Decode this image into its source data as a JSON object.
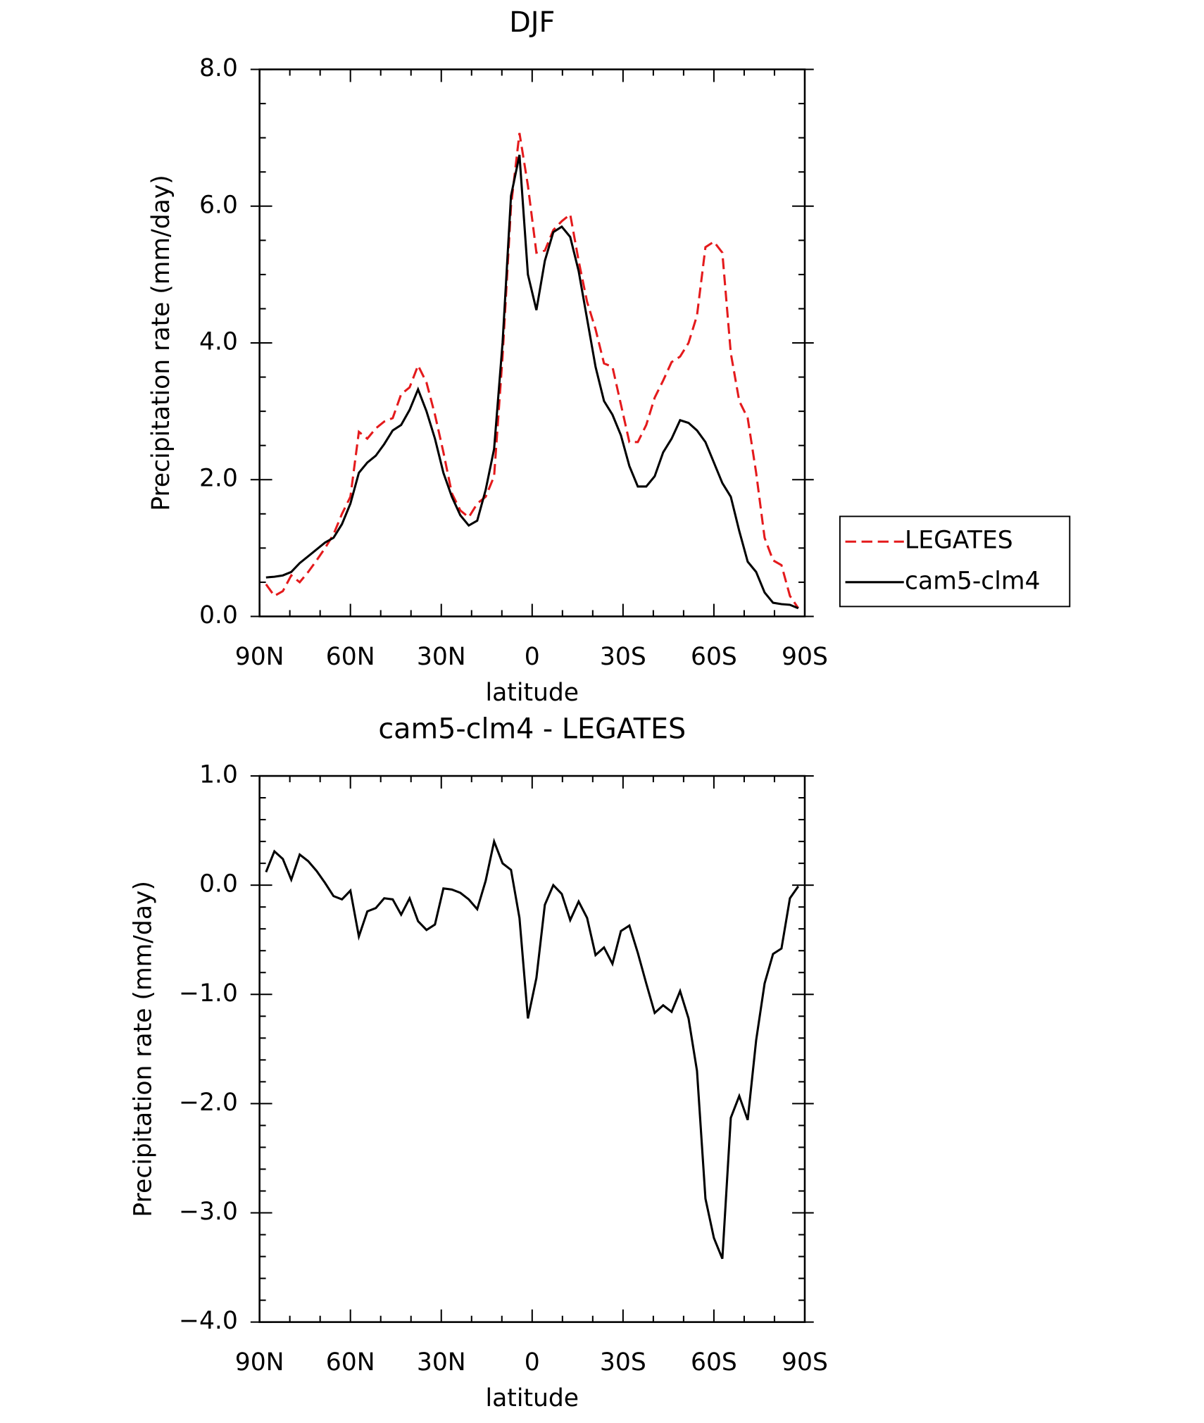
{
  "chart_data": [
    {
      "type": "line",
      "title": "DJF",
      "xlabel": "latitude",
      "ylabel": "Precipitation rate (mm/day)",
      "x": [
        87.86,
        85.1,
        82.31,
        79.53,
        76.74,
        73.95,
        71.16,
        68.37,
        65.58,
        62.79,
        60.0,
        57.21,
        54.42,
        51.63,
        48.84,
        46.04,
        43.25,
        40.46,
        37.67,
        34.88,
        32.09,
        29.3,
        26.51,
        23.72,
        20.93,
        18.14,
        15.35,
        12.56,
        9.77,
        6.98,
        4.19,
        1.4,
        -1.4,
        -4.19,
        -6.98,
        -9.77,
        -12.56,
        -15.35,
        -18.14,
        -20.93,
        -23.72,
        -26.51,
        -29.3,
        -32.09,
        -34.88,
        -37.67,
        -40.46,
        -43.25,
        -46.04,
        -48.84,
        -51.63,
        -54.42,
        -57.21,
        -60.0,
        -62.79,
        -65.58,
        -68.37,
        -71.16,
        -73.95,
        -76.74,
        -79.53,
        -82.31,
        -85.1,
        -87.86
      ],
      "series": [
        {
          "name": "LEGATES",
          "color": "#e41a1c",
          "dash": "dashed",
          "values": [
            0.47,
            0.3,
            0.37,
            0.6,
            0.5,
            0.65,
            0.82,
            1.0,
            1.2,
            1.5,
            1.75,
            2.7,
            2.6,
            2.75,
            2.85,
            2.9,
            3.25,
            3.35,
            3.67,
            3.42,
            2.95,
            2.4,
            1.8,
            1.55,
            1.45,
            1.65,
            1.75,
            2.05,
            3.8,
            6.0,
            7.07,
            6.3,
            5.32,
            5.35,
            5.65,
            5.78,
            5.88,
            5.2,
            4.6,
            4.2,
            3.7,
            3.65,
            3.1,
            2.55,
            2.55,
            2.8,
            3.2,
            3.45,
            3.72,
            3.8,
            4.0,
            4.4,
            5.4,
            5.48,
            5.32,
            3.85,
            3.15,
            2.9,
            2.1,
            1.15,
            0.82,
            0.75,
            0.3,
            0.12
          ]
        },
        {
          "name": "cam5-clm4",
          "color": "#000000",
          "dash": "solid",
          "values": [
            0.57,
            0.58,
            0.6,
            0.65,
            0.78,
            0.88,
            0.98,
            1.08,
            1.15,
            1.35,
            1.65,
            2.1,
            2.25,
            2.35,
            2.52,
            2.72,
            2.8,
            3.02,
            3.32,
            3.0,
            2.6,
            2.1,
            1.75,
            1.48,
            1.33,
            1.4,
            1.85,
            2.45,
            4.0,
            6.15,
            6.75,
            5.0,
            4.48,
            5.2,
            5.62,
            5.7,
            5.55,
            5.05,
            4.35,
            3.65,
            3.15,
            2.95,
            2.65,
            2.2,
            1.9,
            1.9,
            2.05,
            2.4,
            2.6,
            2.87,
            2.83,
            2.72,
            2.55,
            2.25,
            1.95,
            1.75,
            1.25,
            0.8,
            0.65,
            0.35,
            0.2,
            0.18,
            0.17,
            0.12
          ]
        }
      ],
      "xlim": [
        90,
        -90
      ],
      "xticks": [
        {
          "value": 90,
          "label": "90N"
        },
        {
          "value": 60,
          "label": "60N"
        },
        {
          "value": 30,
          "label": "30N"
        },
        0,
        {
          "value": -30,
          "label": "30S"
        },
        {
          "value": -60,
          "label": "60S"
        },
        {
          "value": -90,
          "label": "90S"
        }
      ],
      "minor_xticks": [
        80,
        70,
        50,
        40,
        20,
        10,
        -10,
        -20,
        -40,
        -50,
        -70,
        -80
      ],
      "ylim": [
        0,
        8
      ],
      "yticks": [
        {
          "value": 0,
          "label": "0.0"
        },
        {
          "value": 2,
          "label": "2.0"
        },
        {
          "value": 4,
          "label": "4.0"
        },
        {
          "value": 6,
          "label": "6.0"
        },
        {
          "value": 8,
          "label": "8.0"
        }
      ],
      "minor_yticks": [
        0.5,
        1,
        1.5,
        2.5,
        3,
        3.5,
        4.5,
        5,
        5.5,
        6.5,
        7,
        7.5
      ],
      "legend": "outside-right"
    },
    {
      "type": "line",
      "title": "cam5-clm4 - LEGATES",
      "xlabel": "latitude",
      "ylabel": "Precipitation rate (mm/day)",
      "x": [
        87.86,
        85.1,
        82.31,
        79.53,
        76.74,
        73.95,
        71.16,
        68.37,
        65.58,
        62.79,
        60.0,
        57.21,
        54.42,
        51.63,
        48.84,
        46.04,
        43.25,
        40.46,
        37.67,
        34.88,
        32.09,
        29.3,
        26.51,
        23.72,
        20.93,
        18.14,
        15.35,
        12.56,
        9.77,
        6.98,
        4.19,
        1.4,
        -1.4,
        -4.19,
        -6.98,
        -9.77,
        -12.56,
        -15.35,
        -18.14,
        -20.93,
        -23.72,
        -26.51,
        -29.3,
        -32.09,
        -34.88,
        -37.67,
        -40.46,
        -43.25,
        -46.04,
        -48.84,
        -51.63,
        -54.42,
        -57.21,
        -60.0,
        -62.79,
        -65.58,
        -68.37,
        -71.16,
        -73.95,
        -76.74,
        -79.53,
        -82.31,
        -85.1,
        -87.86
      ],
      "series": [
        {
          "color": "#000000",
          "dash": "solid",
          "values": [
            0.12,
            0.31,
            0.24,
            0.05,
            0.28,
            0.22,
            0.13,
            0.02,
            -0.1,
            -0.13,
            -0.05,
            -0.47,
            -0.24,
            -0.21,
            -0.12,
            -0.13,
            -0.27,
            -0.12,
            -0.33,
            -0.41,
            -0.36,
            -0.03,
            -0.04,
            -0.07,
            -0.13,
            -0.22,
            0.04,
            0.4,
            0.2,
            0.14,
            -0.3,
            -1.22,
            -0.85,
            -0.18,
            0.0,
            -0.08,
            -0.32,
            -0.15,
            -0.3,
            -0.64,
            -0.57,
            -0.72,
            -0.42,
            -0.37,
            -0.62,
            -0.9,
            -1.17,
            -1.1,
            -1.16,
            -0.97,
            -1.22,
            -1.7,
            -2.87,
            -3.23,
            -3.42,
            -2.13,
            -1.93,
            -2.15,
            -1.42,
            -0.9,
            -0.63,
            -0.58,
            -0.12,
            -0.01
          ]
        }
      ],
      "xlim": [
        90,
        -90
      ],
      "xticks": [
        {
          "value": 90,
          "label": "90N"
        },
        {
          "value": 60,
          "label": "60N"
        },
        {
          "value": 30,
          "label": "30N"
        },
        0,
        {
          "value": -30,
          "label": "30S"
        },
        {
          "value": -60,
          "label": "60S"
        },
        {
          "value": -90,
          "label": "90S"
        }
      ],
      "minor_xticks": [
        80,
        70,
        50,
        40,
        20,
        10,
        -10,
        -20,
        -40,
        -50,
        -70,
        -80
      ],
      "ylim": [
        -4,
        1
      ],
      "yticks": [
        {
          "value": -4,
          "label": "−4.0"
        },
        {
          "value": -3,
          "label": "−3.0"
        },
        {
          "value": -2,
          "label": "−2.0"
        },
        {
          "value": -1,
          "label": "−1.0"
        },
        {
          "value": 0,
          "label": "0.0"
        },
        {
          "value": 1,
          "label": "1.0"
        }
      ],
      "minor_yticks": [
        -3.8,
        -3.6,
        -3.4,
        -3.2,
        -2.8,
        -2.6,
        -2.4,
        -2.2,
        -1.8,
        -1.6,
        -1.4,
        -1.2,
        -0.8,
        -0.6,
        -0.4,
        -0.2,
        0.2,
        0.4,
        0.6,
        0.8
      ]
    }
  ]
}
